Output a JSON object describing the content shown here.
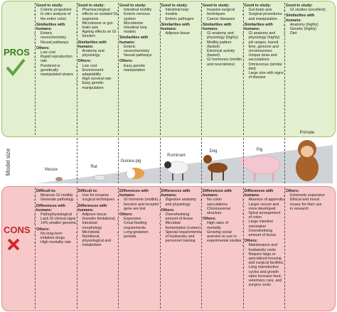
{
  "pros_label": "PROS",
  "cons_label": "CONS",
  "model_size_label": "Model size",
  "animals": [
    "Mouse",
    "Rat",
    "Guinea pig",
    "Ruminant",
    "Dog",
    "Pig",
    "Primate"
  ],
  "pros": [
    [
      {
        "heading": "Good to study:",
        "items": [
          "Colonic propulsion",
          "In vitro analysis of the entire colon"
        ]
      },
      {
        "heading": "Similarities with humans:",
        "items": [
          "Enteric neurochemistry",
          "Neural pathways"
        ]
      },
      {
        "heading": "Others:",
        "items": [
          "Low cost",
          "Rapid reproduction rate",
          "Purebred or genetically manipulated strains"
        ]
      }
    ],
    [
      {
        "heading": "Good to study:",
        "items": [
          "Pharmacological effects on isolated GI segments",
          "Microbiome or gut-brain axis",
          "Ageing effects on GI function"
        ]
      },
      {
        "heading": "Similarities with humans:",
        "items": [
          "Anatomy and physiology"
        ]
      },
      {
        "heading": "Others:",
        "items": [
          "Low cost",
          "Environment adaptability",
          "High survival rate",
          "Easy genetic manipulation"
        ]
      }
    ],
    [
      {
        "heading": "Good to study:",
        "items": [
          "Intestinal motility",
          "Enteric nervous system",
          "Microbiome",
          "Intestinal loop models"
        ]
      },
      {
        "heading": "Similarities with humans:",
        "items": [
          "Enteric neurochemistry",
          "Neural pathways"
        ]
      },
      {
        "heading": "Others:",
        "items": [
          "Easy genetic manipulation"
        ]
      }
    ],
    [
      {
        "heading": "Good to study:",
        "items": [
          "Intestinal loop models",
          "Enteric pathogen"
        ]
      },
      {
        "heading": "Similarities with humans:",
        "items": [
          "Adipose tissue"
        ]
      }
    ],
    [
      {
        "heading": "Good to study:",
        "items": [
          "Invasive surgical techniques",
          "Cancer diseases"
        ]
      },
      {
        "heading": "Similarities with humans:",
        "items": [
          "GI anatomy and physiology (highly)",
          "Motility pattern (fasted)",
          "Electrical activity (fasted)",
          "GI hormones (motilin and neurokinins)"
        ]
      }
    ],
    [
      {
        "heading": "Good to study:",
        "items": [
          "Gut-brain axis",
          "Surgical procedures and manipulation"
        ]
      },
      {
        "heading": "Similarities with humans:",
        "items": [
          "GI anatomy and physiology (highly)",
          "pH ranges, transit time, genome and chromosomes",
          "Unique tenia and sacculations",
          "Omnivorous (similar diet)",
          "Large size with signs of disease"
        ]
      }
    ],
    [
      {
        "heading": "Good to study:",
        "items": [
          "GI studies (excellent)"
        ]
      },
      {
        "heading": "Similarities with humans:",
        "items": [
          "Anatomy (highly)",
          "Genetic (highly)",
          "Diet"
        ]
      }
    ]
  ],
  "cons": [
    [
      {
        "heading": "Difficult to:",
        "items": [
          "Measure GI motility",
          "Generate pathology"
        ]
      },
      {
        "heading": "Differences with humans:",
        "items": [
          "Pathophysiological",
          "Lack GI clinical signs",
          "14% smaller genome"
        ]
      },
      {
        "heading": "Others:",
        "items": [
          "No long-term imitative drugs",
          "High mortality rate"
        ]
      }
    ],
    [
      {
        "heading": "Difficult to:",
        "items": [
          "Use for invasive surgical techniques"
        ]
      },
      {
        "heading": "Differences with humans:",
        "items": [
          "Adipose tissue (transfer limitations)",
          "Intestinal morphology",
          "Microbiota",
          "Nutritional, physiological and metabolism"
        ]
      }
    ],
    [
      {
        "heading": "Differences with humans:",
        "items": [
          "GI hormone (motilin) function and receptor gene are lost"
        ]
      },
      {
        "heading": "Others:",
        "items": [
          "Expensive",
          "Cecal feeding requirements",
          "Long gestation periods"
        ]
      }
    ],
    [
      {
        "heading": "Differences with humans:",
        "items": [
          "Digestive anatomy and physiology"
        ]
      },
      {
        "heading": "Others:",
        "items": [
          "Overwhelming amount of tissue",
          "Microbial fermentation (rumen)",
          "Special requirements of husbandry and personnel training"
        ]
      }
    ],
    [
      {
        "heading": "Differences with humans:",
        "items": [
          "No colon sacculations",
          "Chromosomal structure"
        ]
      },
      {
        "heading": "Others:",
        "items": [
          "High rates of mortality",
          "Growing social aversion to use in experimental studies"
        ]
      }
    ],
    [
      {
        "heading": "Differences with humans:",
        "items": [
          "Absence of appendix",
          "Larger cecum and more developed",
          "Spiral arrangement of colon",
          "Large intestine orientation",
          "Overwhelming amount of tissue"
        ]
      },
      {
        "heading": "Others:",
        "items": [
          "Maintenance and husbandry costs",
          "Require large or specialized housing and surgical facilities",
          "Long reproductive cycles and growth rates increase feed, veterinary care, and surgery costs"
        ]
      }
    ],
    [
      {
        "heading": "Others:",
        "items": [
          "Extremely expensive",
          "Ethical and moral issues for their use in research"
        ]
      }
    ]
  ]
}
